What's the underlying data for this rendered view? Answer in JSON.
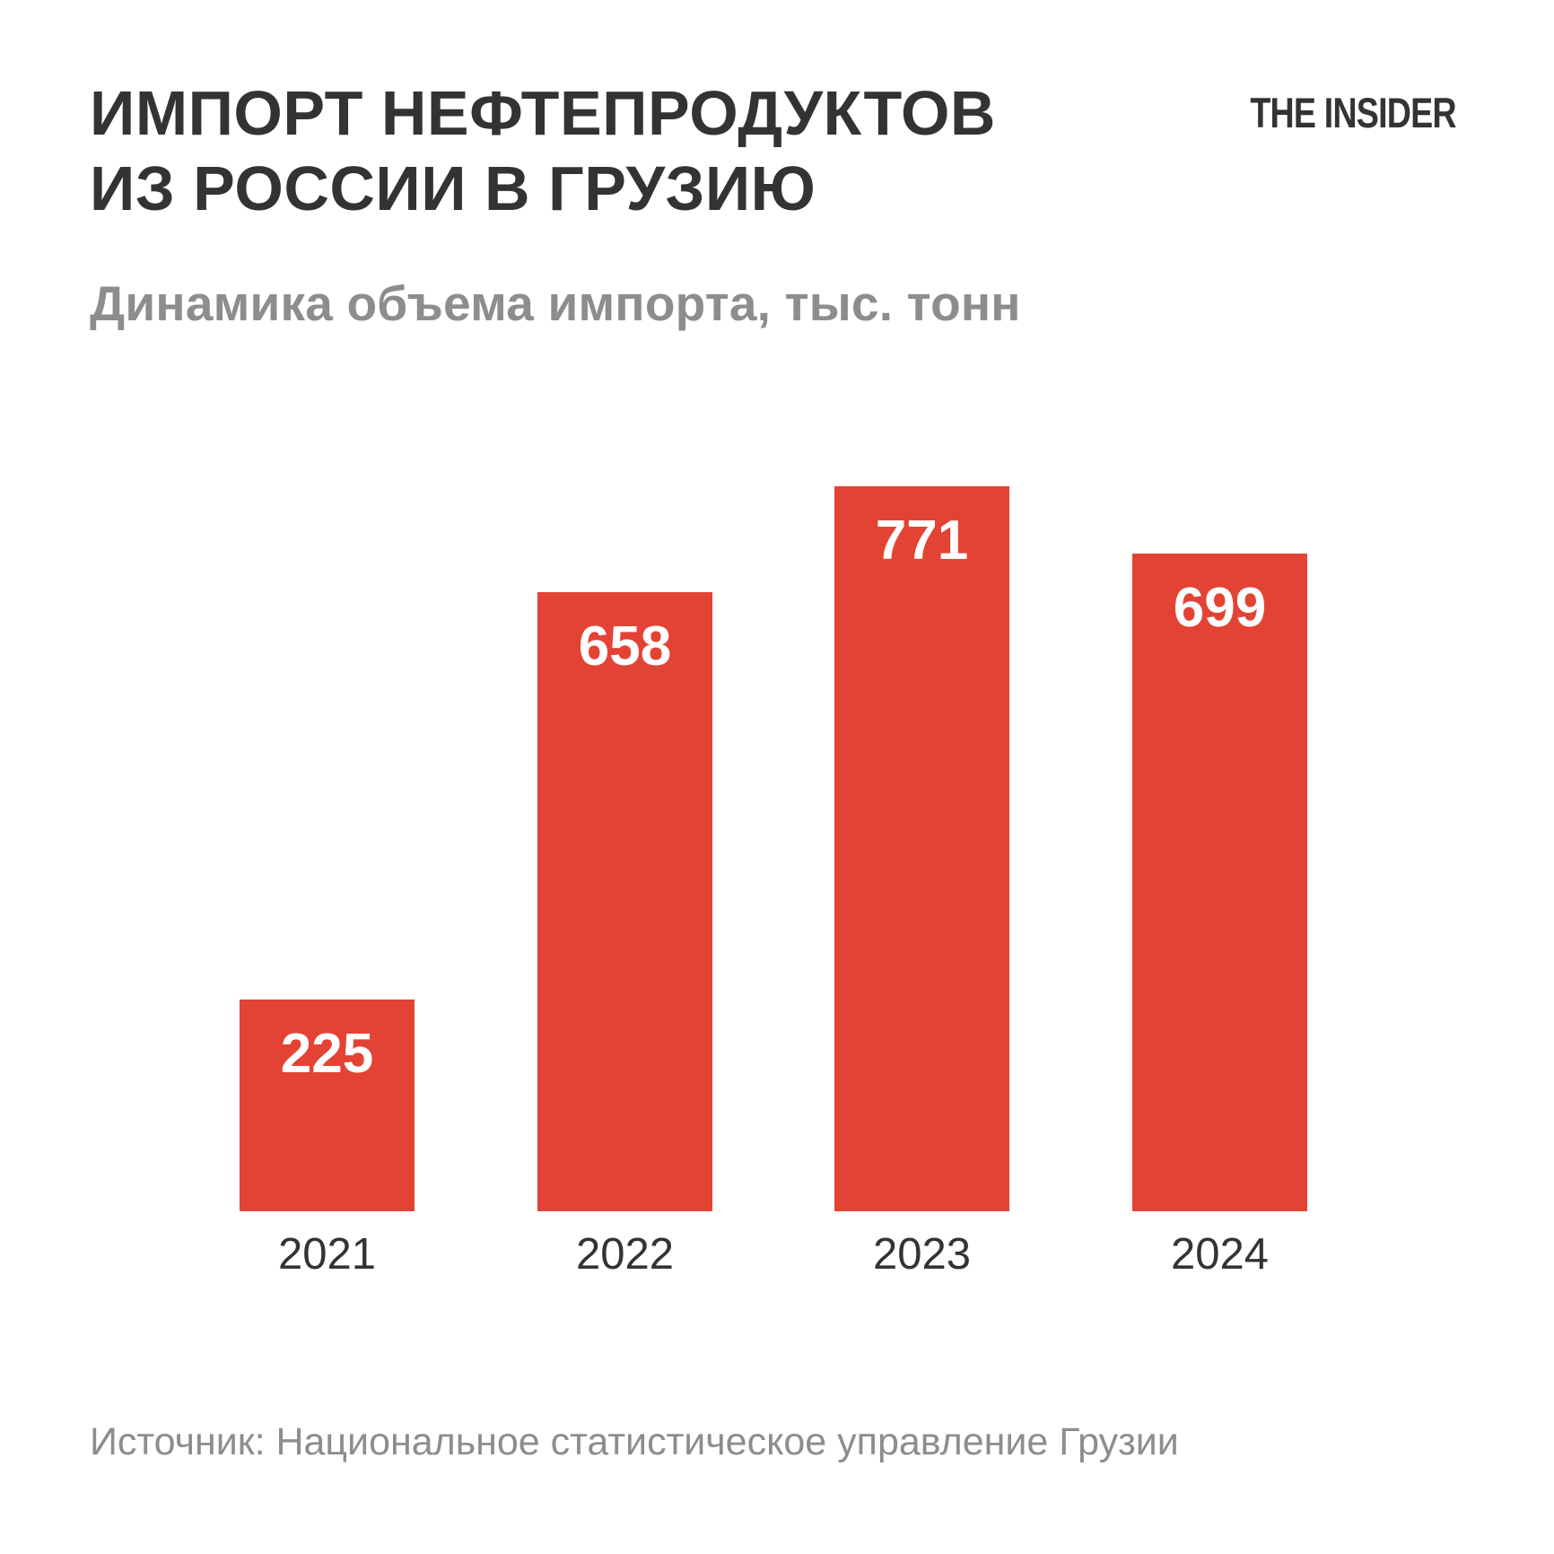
{
  "header": {
    "title": "ИМПОРТ НЕФТЕПРОДУКТОВ\nИЗ РОССИИ В ГРУЗИЮ",
    "logo": "THE INSIDER",
    "subtitle": "Динамика объема импорта, тыс. тонн"
  },
  "chart_data": {
    "type": "bar",
    "categories": [
      "2021",
      "2022",
      "2023",
      "2024"
    ],
    "values": [
      225,
      658,
      771,
      699
    ],
    "title": "ИМПОРТ НЕФТЕПРОДУКТОВ ИЗ РОССИИ В ГРУЗИЮ",
    "subtitle": "Динамика объема импорта, тыс. тонн",
    "xlabel": "",
    "ylabel": "тыс. тонн",
    "ylim": [
      0,
      880
    ],
    "grid": false,
    "legend": false,
    "value_labels": "inside-top",
    "bar_color": "#E34334",
    "value_label_color": "#FFFFFF"
  },
  "footer": {
    "source": "Источник: Национальное статистическое управление Грузии"
  },
  "colors": {
    "background": "#FFFFFF",
    "accent_red": "#E34334",
    "title_text": "#333333",
    "muted_text": "#8D8D8D"
  }
}
